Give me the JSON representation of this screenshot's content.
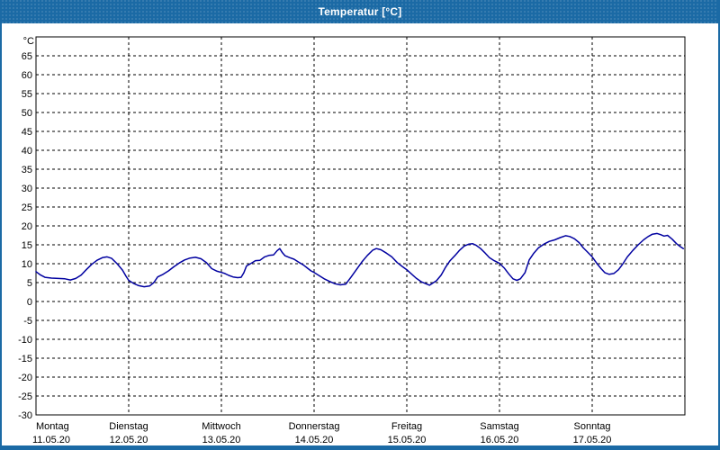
{
  "window": {
    "title": "Temperatur [°C]"
  },
  "colors": {
    "frame_blue": "#1b6aa5",
    "line_navy": "#0000a0",
    "plot_border": "#000000",
    "background": "#ffffff"
  },
  "chart_data": {
    "type": "line",
    "title": "Temperatur [°C]",
    "ylabel": "°C",
    "xlabel": "",
    "legend": "none",
    "grid": "dashed",
    "ylim": [
      -30,
      70
    ],
    "y_ticks": [
      65,
      60,
      55,
      50,
      45,
      40,
      35,
      30,
      25,
      20,
      15,
      10,
      5,
      0,
      -5,
      -10,
      -15,
      -20,
      -25,
      -30
    ],
    "x_total_hours": 168,
    "x_axis": {
      "days": [
        {
          "name": "Montag",
          "date": "11.05.20"
        },
        {
          "name": "Dienstag",
          "date": "12.05.20"
        },
        {
          "name": "Mittwoch",
          "date": "13.05.20"
        },
        {
          "name": "Donnerstag",
          "date": "14.05.20"
        },
        {
          "name": "Freitag",
          "date": "15.05.20"
        },
        {
          "name": "Samstag",
          "date": "16.05.20"
        },
        {
          "name": "Sonntag",
          "date": "17.05.20"
        }
      ]
    },
    "series": [
      {
        "name": "Temperatur",
        "unit": "°C",
        "color": "#0000a0",
        "points": [
          [
            0,
            7.9
          ],
          [
            1.2,
            7.0
          ],
          [
            2.3,
            6.4
          ],
          [
            4,
            6.2
          ],
          [
            5.8,
            6.1
          ],
          [
            7.5,
            6.0
          ],
          [
            8.9,
            5.7
          ],
          [
            10.3,
            6.1
          ],
          [
            11.7,
            7.0
          ],
          [
            13,
            8.4
          ],
          [
            14.4,
            9.8
          ],
          [
            15.8,
            10.9
          ],
          [
            17.2,
            11.6
          ],
          [
            18.4,
            11.8
          ],
          [
            19.6,
            11.4
          ],
          [
            21,
            10.0
          ],
          [
            22.4,
            8.3
          ],
          [
            23.3,
            6.7
          ],
          [
            24,
            5.6
          ],
          [
            25.2,
            4.8
          ],
          [
            26.6,
            4.2
          ],
          [
            28,
            3.9
          ],
          [
            29.4,
            4.1
          ],
          [
            30.5,
            5.0
          ],
          [
            31.5,
            6.5
          ],
          [
            32.9,
            7.2
          ],
          [
            34.3,
            8.1
          ],
          [
            35.7,
            9.2
          ],
          [
            37.1,
            10.2
          ],
          [
            38.5,
            11.0
          ],
          [
            39.9,
            11.5
          ],
          [
            41.3,
            11.7
          ],
          [
            42.7,
            11.3
          ],
          [
            44.1,
            10.3
          ],
          [
            45.5,
            8.7
          ],
          [
            46.9,
            8.0
          ],
          [
            48,
            7.7
          ],
          [
            48.9,
            7.4
          ],
          [
            49.9,
            6.9
          ],
          [
            51,
            6.5
          ],
          [
            52.2,
            6.3
          ],
          [
            53.1,
            6.4
          ],
          [
            53.8,
            7.6
          ],
          [
            54.5,
            9.4
          ],
          [
            55.7,
            10.1
          ],
          [
            56.8,
            10.8
          ],
          [
            58,
            10.9
          ],
          [
            59.2,
            11.8
          ],
          [
            60.3,
            12.2
          ],
          [
            61.5,
            12.3
          ],
          [
            62.4,
            13.4
          ],
          [
            63.1,
            14.0
          ],
          [
            63.8,
            12.9
          ],
          [
            64.5,
            12.1
          ],
          [
            65.7,
            11.6
          ],
          [
            66.8,
            11.2
          ],
          [
            68,
            10.4
          ],
          [
            69.2,
            9.7
          ],
          [
            70.3,
            8.8
          ],
          [
            71.2,
            8.1
          ],
          [
            72,
            7.7
          ],
          [
            73.2,
            6.9
          ],
          [
            74.6,
            6.0
          ],
          [
            76,
            5.3
          ],
          [
            77.4,
            4.7
          ],
          [
            78.8,
            4.4
          ],
          [
            80.2,
            4.6
          ],
          [
            81.6,
            6.5
          ],
          [
            83,
            8.5
          ],
          [
            84.4,
            10.5
          ],
          [
            85.8,
            12.2
          ],
          [
            87.2,
            13.6
          ],
          [
            88.1,
            14.0
          ],
          [
            89.3,
            13.7
          ],
          [
            90.7,
            12.8
          ],
          [
            92.1,
            11.8
          ],
          [
            93.5,
            10.3
          ],
          [
            94.9,
            9.2
          ],
          [
            96,
            8.4
          ],
          [
            97.2,
            7.3
          ],
          [
            98.4,
            6.2
          ],
          [
            99.8,
            5.2
          ],
          [
            101.2,
            4.6
          ],
          [
            101.9,
            4.3
          ],
          [
            103.7,
            5.5
          ],
          [
            104.9,
            7.0
          ],
          [
            106,
            9.0
          ],
          [
            107.2,
            10.8
          ],
          [
            108.6,
            12.3
          ],
          [
            109.7,
            13.6
          ],
          [
            110.9,
            14.7
          ],
          [
            112.1,
            15.2
          ],
          [
            113,
            15.3
          ],
          [
            113.9,
            14.9
          ],
          [
            115.1,
            14.0
          ],
          [
            116.3,
            12.8
          ],
          [
            117.4,
            11.6
          ],
          [
            118.6,
            10.8
          ],
          [
            120,
            10.1
          ],
          [
            121.2,
            8.9
          ],
          [
            122.4,
            7.3
          ],
          [
            123.5,
            6.0
          ],
          [
            124.5,
            5.6
          ],
          [
            125.4,
            6.0
          ],
          [
            126.6,
            7.6
          ],
          [
            127.7,
            11.0
          ],
          [
            128.9,
            12.8
          ],
          [
            130.1,
            14.2
          ],
          [
            131.5,
            15.2
          ],
          [
            132.9,
            15.9
          ],
          [
            134.3,
            16.3
          ],
          [
            135.7,
            16.9
          ],
          [
            137.1,
            17.4
          ],
          [
            138.2,
            17.2
          ],
          [
            139.4,
            16.6
          ],
          [
            140.6,
            15.6
          ],
          [
            141.7,
            14.2
          ],
          [
            142.7,
            13.2
          ],
          [
            144,
            11.8
          ],
          [
            145.2,
            10.1
          ],
          [
            146.3,
            8.7
          ],
          [
            147.3,
            7.6
          ],
          [
            148.4,
            7.2
          ],
          [
            149.6,
            7.4
          ],
          [
            150.8,
            8.4
          ],
          [
            151.9,
            9.9
          ],
          [
            153.1,
            11.8
          ],
          [
            154.5,
            13.5
          ],
          [
            155.9,
            15.0
          ],
          [
            157.3,
            16.3
          ],
          [
            158.5,
            17.2
          ],
          [
            159.6,
            17.8
          ],
          [
            160.8,
            18.0
          ],
          [
            161.7,
            17.7
          ],
          [
            162.6,
            17.3
          ],
          [
            163.5,
            17.5
          ],
          [
            164.7,
            16.5
          ],
          [
            165.8,
            15.3
          ],
          [
            166.7,
            14.6
          ],
          [
            167.6,
            14.0
          ]
        ]
      }
    ]
  }
}
